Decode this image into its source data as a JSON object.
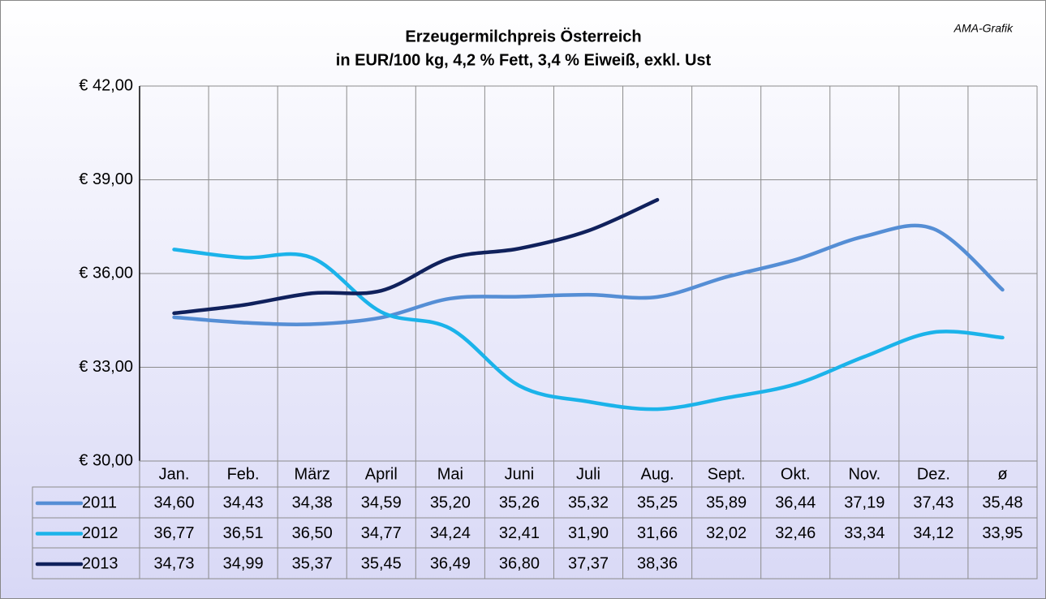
{
  "chart_data": {
    "type": "line",
    "title": "Erzeugermilchpreis Österreich",
    "subtitle": "in EUR/100 kg, 4,2 % Fett, 3,4 % Eiweiß, exkl. Ust",
    "annotation": "AMA-Grafik",
    "categories": [
      "Jan.",
      "Feb.",
      "März",
      "April",
      "Mai",
      "Juni",
      "Juli",
      "Aug.",
      "Sept.",
      "Okt.",
      "Nov.",
      "Dez.",
      "ø"
    ],
    "ylim": [
      30,
      42
    ],
    "yticks": [
      {
        "value": 30,
        "label": "€ 30,00"
      },
      {
        "value": 33,
        "label": "€ 33,00"
      },
      {
        "value": 36,
        "label": "€ 36,00"
      },
      {
        "value": 39,
        "label": "€ 39,00"
      },
      {
        "value": 42,
        "label": "€ 42,00"
      }
    ],
    "grid": true,
    "series": [
      {
        "name": "2011",
        "color": "#558ed5",
        "values": [
          34.6,
          34.43,
          34.38,
          34.59,
          35.2,
          35.26,
          35.32,
          35.25,
          35.89,
          36.44,
          37.19,
          37.43,
          35.48
        ],
        "value_labels": [
          "34,60",
          "34,43",
          "34,38",
          "34,59",
          "35,20",
          "35,26",
          "35,32",
          "35,25",
          "35,89",
          "36,44",
          "37,19",
          "37,43",
          "35,48"
        ]
      },
      {
        "name": "2012",
        "color": "#1bb3ea",
        "values": [
          36.77,
          36.51,
          36.5,
          34.77,
          34.24,
          32.41,
          31.9,
          31.66,
          32.02,
          32.46,
          33.34,
          34.12,
          33.95
        ],
        "value_labels": [
          "36,77",
          "36,51",
          "36,50",
          "34,77",
          "34,24",
          "32,41",
          "31,90",
          "31,66",
          "32,02",
          "32,46",
          "33,34",
          "34,12",
          "33,95"
        ]
      },
      {
        "name": "2013",
        "color": "#10215c",
        "values": [
          34.73,
          34.99,
          35.37,
          35.45,
          36.49,
          36.8,
          37.37,
          38.36,
          null,
          null,
          null,
          null,
          null
        ],
        "value_labels": [
          "34,73",
          "34,99",
          "35,37",
          "35,45",
          "36,49",
          "36,80",
          "37,37",
          "38,36",
          null,
          null,
          null,
          null,
          null
        ]
      }
    ]
  }
}
